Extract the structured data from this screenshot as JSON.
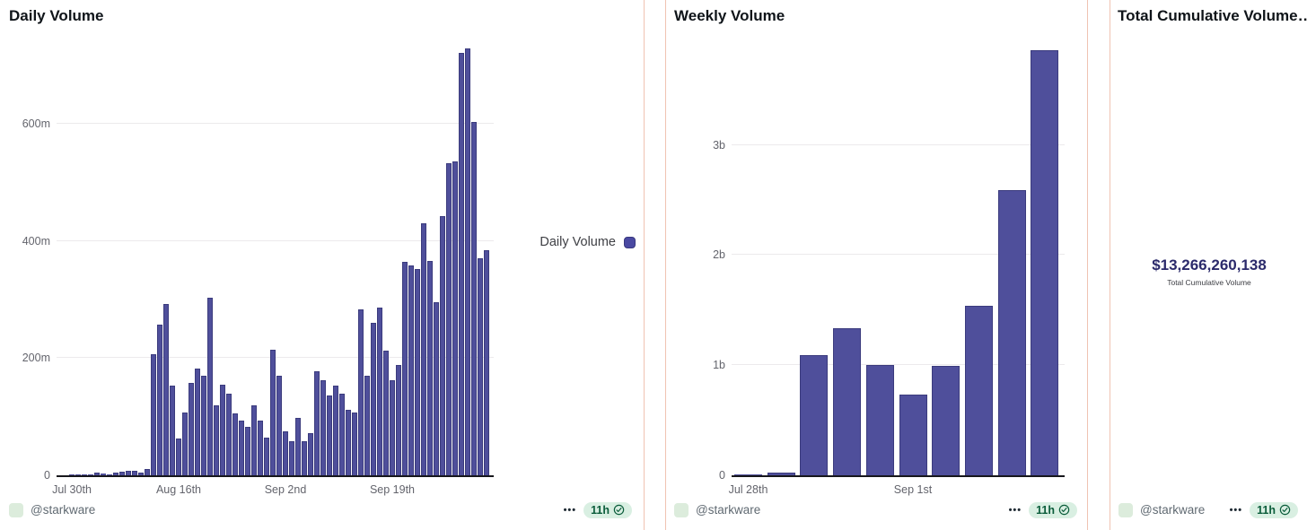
{
  "colors": {
    "bar_fill": "#4f4f9b",
    "bar_border": "#3b3b7d",
    "card_border": "#f0c3b2",
    "gridline": "#eceaec",
    "axis": "#17171c",
    "tick_text": "#63646c",
    "title_text": "#0f1419",
    "handle_text": "#606a72",
    "badge_bg": "#d9efe2",
    "badge_text": "#0b5d3b",
    "avatar_bg": "#dcecdc",
    "stat_value_text": "#2b2a6b"
  },
  "panels": [
    {
      "title": "Daily Volume",
      "legend_label": "Daily Volume",
      "footer": {
        "handle": "@starkware",
        "more": "•••",
        "age": "11h",
        "verified_icon": "verified-check"
      }
    },
    {
      "title": "Weekly Volume",
      "footer": {
        "handle": "@starkware",
        "more": "•••",
        "age": "11h",
        "verified_icon": "verified-check"
      }
    },
    {
      "title": "Total Cumulative Volume…",
      "footer": {
        "handle": "@starkware",
        "more": "•••",
        "age": "11h",
        "verified_icon": "verified-check"
      }
    }
  ],
  "chart_data": [
    {
      "type": "bar",
      "title": "Daily Volume",
      "series_name": "Daily Volume",
      "unit": "USD, m = millions",
      "ylim": [
        0,
        760
      ],
      "grid": true,
      "legend_position": "right-middle",
      "y_ticks": [
        {
          "value": 0,
          "label": "0"
        },
        {
          "value": 200,
          "label": "200m"
        },
        {
          "value": 400,
          "label": "400m"
        },
        {
          "value": 600,
          "label": "600m"
        }
      ],
      "x_ticks": [
        {
          "index": 2,
          "label": "Jul 30th"
        },
        {
          "index": 19,
          "label": "Aug 16th"
        },
        {
          "index": 36,
          "label": "Sep 2nd"
        },
        {
          "index": 53,
          "label": "Sep 19th"
        }
      ],
      "values": [
        0,
        0,
        0.5,
        1,
        1,
        2,
        4,
        3,
        2,
        4,
        6,
        8,
        8,
        5,
        11,
        207,
        258,
        293,
        153,
        63,
        108,
        158,
        182,
        170,
        303,
        120,
        155,
        140,
        105,
        93,
        83,
        120,
        93,
        65,
        214,
        170,
        75,
        58,
        98,
        58,
        72,
        177,
        163,
        136,
        154,
        140,
        112,
        108,
        283,
        170,
        261,
        286,
        213,
        162,
        188,
        364,
        358,
        352,
        430,
        366,
        295,
        443,
        533,
        537,
        722,
        729,
        603,
        371,
        384
      ]
    },
    {
      "type": "bar",
      "title": "Weekly Volume",
      "series_name": "Weekly Volume",
      "unit": "USD, b = billions",
      "ylim": [
        0,
        4.04
      ],
      "grid": true,
      "y_ticks": [
        {
          "value": 0,
          "label": "0"
        },
        {
          "value": 1,
          "label": "1b"
        },
        {
          "value": 2,
          "label": "2b"
        },
        {
          "value": 3,
          "label": "3b"
        }
      ],
      "x_ticks": [
        {
          "index": 0,
          "label": "Jul 28th"
        },
        {
          "index": 5,
          "label": "Sep 1st"
        }
      ],
      "values": [
        0.01,
        0.025,
        1.09,
        1.34,
        1.0,
        0.73,
        0.99,
        1.54,
        2.59,
        3.86
      ]
    },
    {
      "type": "stat",
      "title": "Total Cumulative Volume…",
      "value": "$13,266,260,138",
      "label": "Total Cumulative Volume"
    }
  ]
}
